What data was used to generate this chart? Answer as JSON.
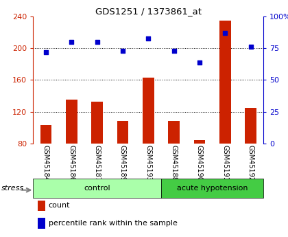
{
  "title": "GDS1251 / 1373861_at",
  "samples": [
    "GSM45184",
    "GSM45186",
    "GSM45187",
    "GSM45189",
    "GSM45193",
    "GSM45188",
    "GSM45190",
    "GSM45191",
    "GSM45192"
  ],
  "bar_values": [
    103,
    135,
    133,
    108,
    163,
    108,
    84,
    235,
    125
  ],
  "dot_values": [
    72,
    80,
    80,
    73,
    83,
    73,
    64,
    87,
    76
  ],
  "groups": [
    {
      "label": "control",
      "start": 0,
      "end": 5,
      "color": "#aaffaa"
    },
    {
      "label": "acute hypotension",
      "start": 5,
      "end": 9,
      "color": "#44cc44"
    }
  ],
  "bar_color": "#cc2200",
  "dot_color": "#0000cc",
  "left_ylim": [
    80,
    240
  ],
  "right_ylim": [
    0,
    100
  ],
  "left_yticks": [
    80,
    120,
    160,
    200,
    240
  ],
  "right_yticks": [
    0,
    25,
    50,
    75,
    100
  ],
  "right_yticklabels": [
    "0",
    "25",
    "50",
    "75",
    "100%"
  ],
  "grid_values": [
    120,
    160,
    200
  ],
  "bg_color": "#ffffff",
  "tick_area_color": "#cccccc",
  "stress_label": "stress",
  "legend_count_label": "count",
  "legend_pct_label": "percentile rank within the sample"
}
